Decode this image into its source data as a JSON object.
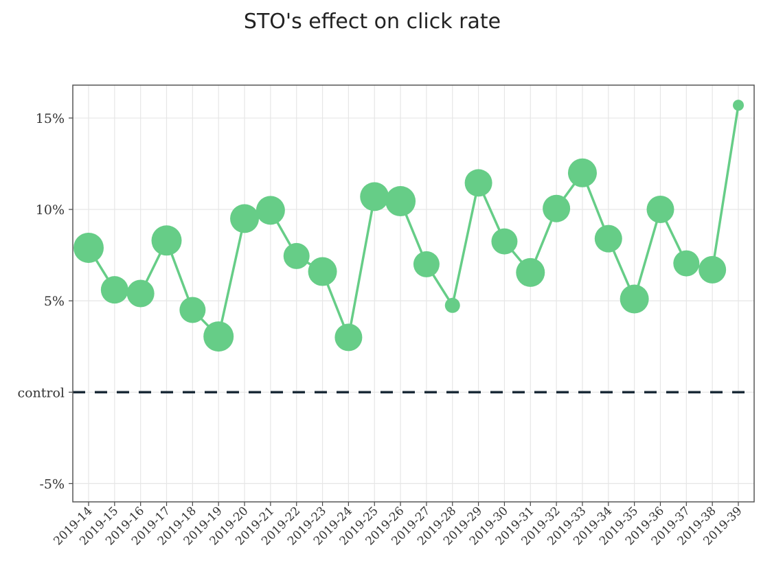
{
  "chart_data": {
    "type": "line",
    "title": "STO's effect on click rate",
    "xlabel": "",
    "ylabel": "",
    "categories": [
      "2019-14",
      "2019-15",
      "2019-16",
      "2019-17",
      "2019-18",
      "2019-19",
      "2019-20",
      "2019-21",
      "2019-22",
      "2019-23",
      "2019-24",
      "2019-25",
      "2019-26",
      "2019-27",
      "2019-28",
      "2019-29",
      "2019-30",
      "2019-31",
      "2019-32",
      "2019-33",
      "2019-34",
      "2019-35",
      "2019-36",
      "2019-37",
      "2019-38",
      "2019-39"
    ],
    "series": [
      {
        "values": [
          7.9,
          5.6,
          5.4,
          8.3,
          4.5,
          3.05,
          9.5,
          9.95,
          7.45,
          6.6,
          3.0,
          10.7,
          10.45,
          7.0,
          4.75,
          11.45,
          8.25,
          6.55,
          10.05,
          12.0,
          8.4,
          5.1,
          10.0,
          7.05,
          6.7,
          15.7
        ],
        "point_size": [
          0.9,
          0.8,
          0.8,
          0.9,
          0.75,
          0.9,
          0.85,
          0.85,
          0.75,
          0.85,
          0.8,
          0.85,
          0.9,
          0.75,
          0.35,
          0.8,
          0.75,
          0.85,
          0.8,
          0.85,
          0.8,
          0.85,
          0.8,
          0.75,
          0.8,
          0.2
        ]
      }
    ],
    "yticks": [
      {
        "value": 15,
        "label": "15%"
      },
      {
        "value": 10,
        "label": "10%"
      },
      {
        "value": 5,
        "label": "5%"
      },
      {
        "value": 0,
        "label": "control"
      },
      {
        "value": -5,
        "label": "-5%"
      }
    ],
    "ylim": [
      -6,
      16.8
    ],
    "reference_line": {
      "value": 0,
      "style": "dashed"
    },
    "grid": true,
    "colors": {
      "series": "#66cd87",
      "reference": "#1b2b38",
      "grid": "#e6e6e6",
      "border": "#555555"
    }
  }
}
